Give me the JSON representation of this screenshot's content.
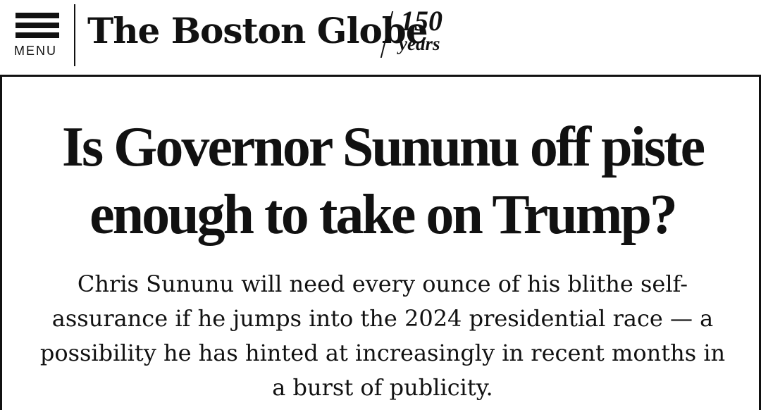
{
  "header": {
    "menu_label": "MENU",
    "logo_text": "The Boston Globe",
    "anniversary_number": "150",
    "anniversary_word": "years"
  },
  "article": {
    "headline": "Is Governor Sununu off piste enough to take on Trump?",
    "dek": "Chris Sununu will need every ounce of his blithe self-assurance if he jumps into the 2024 presidential race — a possibility he has hinted at increasingly in recent months in a burst of publicity."
  }
}
